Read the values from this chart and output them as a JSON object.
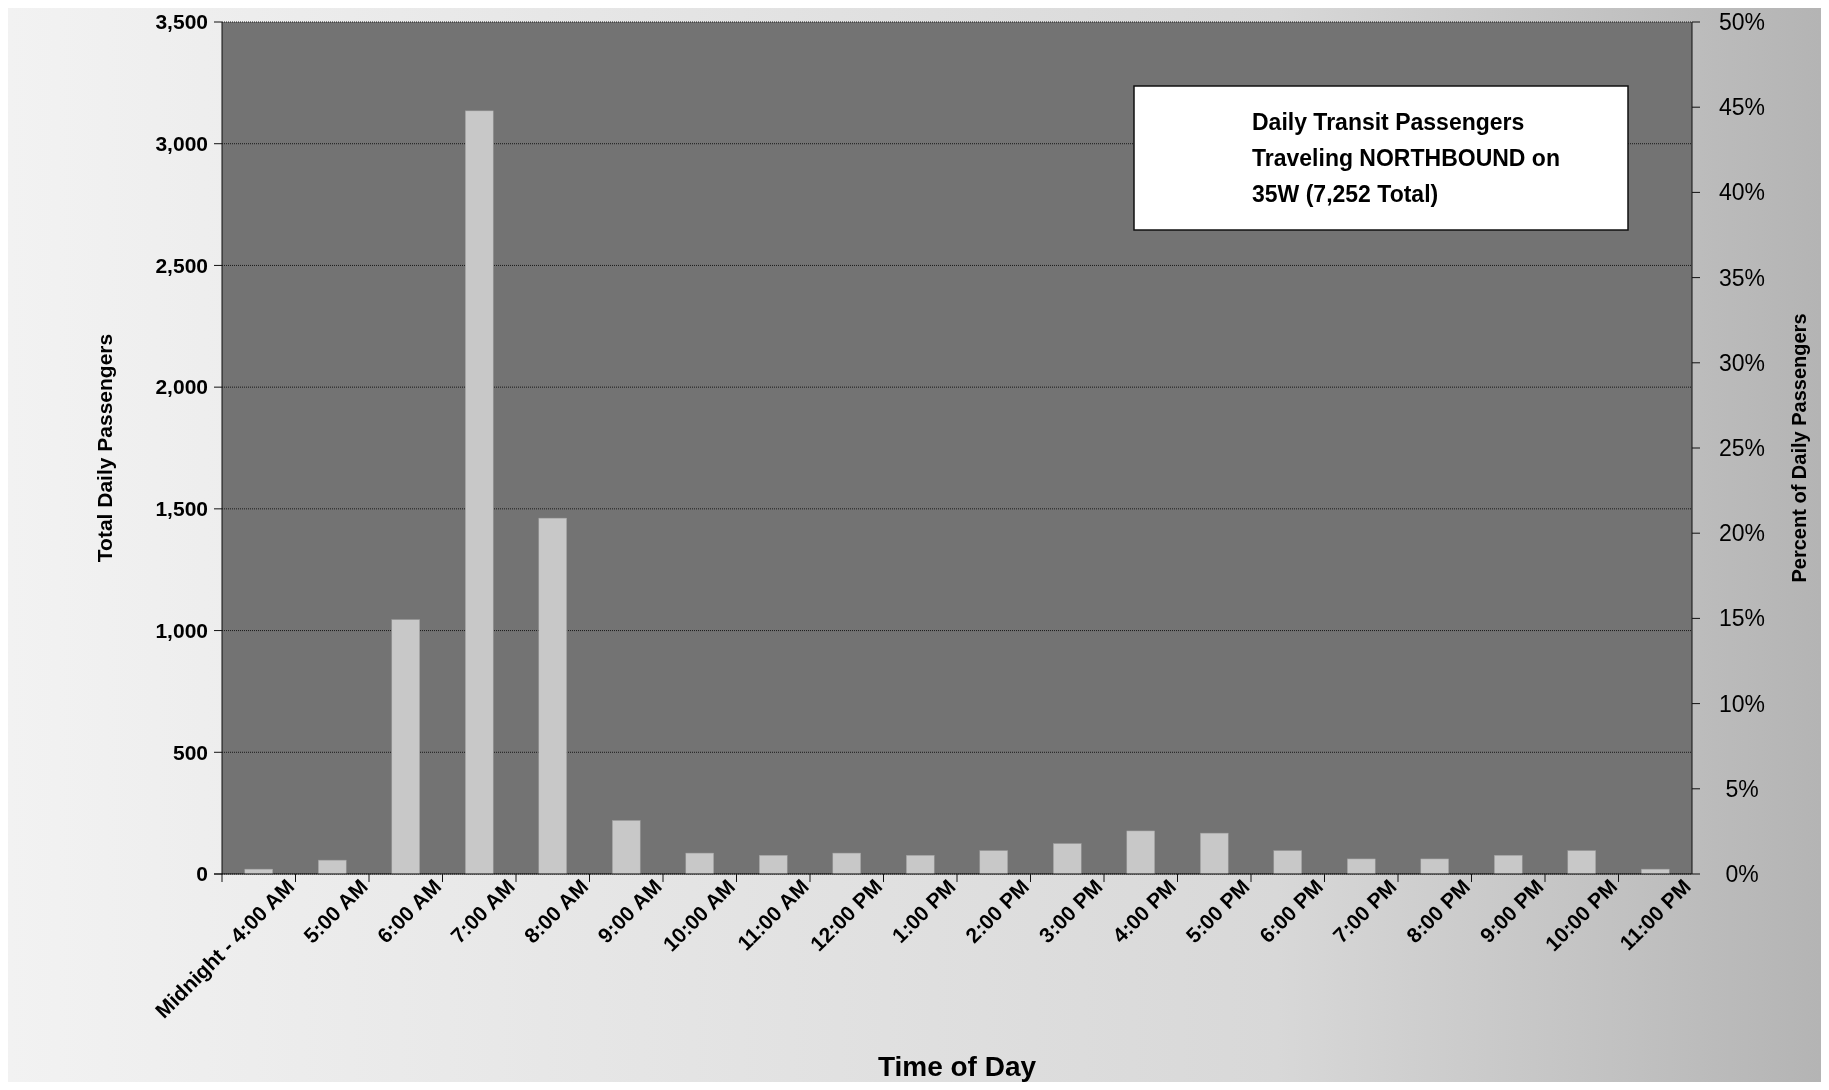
{
  "chart_data": {
    "type": "bar",
    "title": "Daily Transit Passengers Traveling NORTHBOUND on 35W (7,252 Total)",
    "xlabel": "Time of Day",
    "ylabel": "Total Daily Passengers",
    "y2label": "Percent of Daily Passengers",
    "categories": [
      "Midnight - 4:00 AM",
      "5:00 AM",
      "6:00 AM",
      "7:00 AM",
      "8:00 AM",
      "9:00 AM",
      "10:00 AM",
      "11:00 AM",
      "12:00 PM",
      "1:00 PM",
      "2:00 PM",
      "3:00 PM",
      "4:00 PM",
      "5:00 PM",
      "6:00 PM",
      "7:00 PM",
      "8:00 PM",
      "9:00 PM",
      "10:00 PM",
      "11:00 PM"
    ],
    "values": [
      20,
      57,
      1045,
      3135,
      1462,
      220,
      86,
      77,
      86,
      77,
      96,
      125,
      177,
      168,
      96,
      62,
      62,
      77,
      96,
      20
    ],
    "color": "#c8c8c8",
    "ylim": [
      0,
      3500
    ],
    "yticks": [
      {
        "value": 0,
        "label": "0"
      },
      {
        "value": 500,
        "label": "500"
      },
      {
        "value": 1000,
        "label": "1,000"
      },
      {
        "value": 1500,
        "label": "1,500"
      },
      {
        "value": 2000,
        "label": "2,000"
      },
      {
        "value": 2500,
        "label": "2,500"
      },
      {
        "value": 3000,
        "label": "3,000"
      },
      {
        "value": 3500,
        "label": "3,500"
      }
    ],
    "y2lim": [
      0,
      50
    ],
    "y2ticks": [
      {
        "value": 0,
        "label": "0%"
      },
      {
        "value": 5,
        "label": "5%"
      },
      {
        "value": 10,
        "label": "10%"
      },
      {
        "value": 15,
        "label": "15%"
      },
      {
        "value": 20,
        "label": "20%"
      },
      {
        "value": 25,
        "label": "25%"
      },
      {
        "value": 30,
        "label": "30%"
      },
      {
        "value": 35,
        "label": "35%"
      },
      {
        "value": 40,
        "label": "40%"
      },
      {
        "value": 45,
        "label": "45%"
      },
      {
        "value": 50,
        "label": "50%"
      }
    ],
    "grid": "y"
  }
}
